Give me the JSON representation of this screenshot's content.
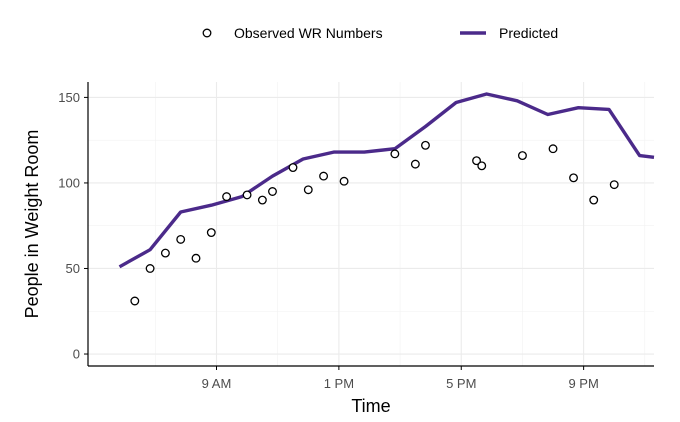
{
  "chart_data": {
    "type": "line",
    "xlabel": "Time",
    "ylabel": "People in Weight Room",
    "ylim": [
      -7,
      159
    ],
    "xlim": [
      4.8,
      23.3
    ],
    "grid": true,
    "legend_position": "top",
    "x_ticks": [
      {
        "value": 9,
        "label": "9 AM"
      },
      {
        "value": 13,
        "label": "1 PM"
      },
      {
        "value": 17,
        "label": "5 PM"
      },
      {
        "value": 21,
        "label": "9 PM"
      }
    ],
    "y_ticks": [
      {
        "value": 0,
        "label": "0"
      },
      {
        "value": 50,
        "label": "50"
      },
      {
        "value": 100,
        "label": "100"
      },
      {
        "value": 150,
        "label": "150"
      }
    ],
    "series": [
      {
        "name": "Observed WR Numbers",
        "kind": "points",
        "color": "#000000",
        "x": [
          6.33,
          6.83,
          7.33,
          7.83,
          8.33,
          8.83,
          9.33,
          10.0,
          10.5,
          10.83,
          11.5,
          12.0,
          12.5,
          13.17,
          14.83,
          15.5,
          15.83,
          17.5,
          17.67,
          19.0,
          20.0,
          20.67,
          21.33,
          22.0
        ],
        "y": [
          31,
          50,
          59,
          67,
          56,
          71,
          92,
          93,
          90,
          95,
          109,
          96,
          104,
          101,
          117,
          111,
          122,
          113,
          110,
          116,
          120,
          103,
          90,
          99
        ]
      },
      {
        "name": "Predicted",
        "kind": "line",
        "color": "#4b2a8a",
        "x": [
          5.83,
          6.83,
          7.83,
          8.83,
          9.83,
          10.83,
          11.83,
          12.83,
          13.83,
          14.83,
          15.83,
          16.83,
          17.83,
          18.83,
          19.83,
          20.83,
          21.83,
          22.83,
          23.3
        ],
        "y": [
          51,
          61,
          83,
          87,
          92,
          104,
          114,
          118,
          118,
          120,
          133,
          147,
          152,
          148,
          140,
          144,
          143,
          116,
          115
        ]
      }
    ]
  }
}
